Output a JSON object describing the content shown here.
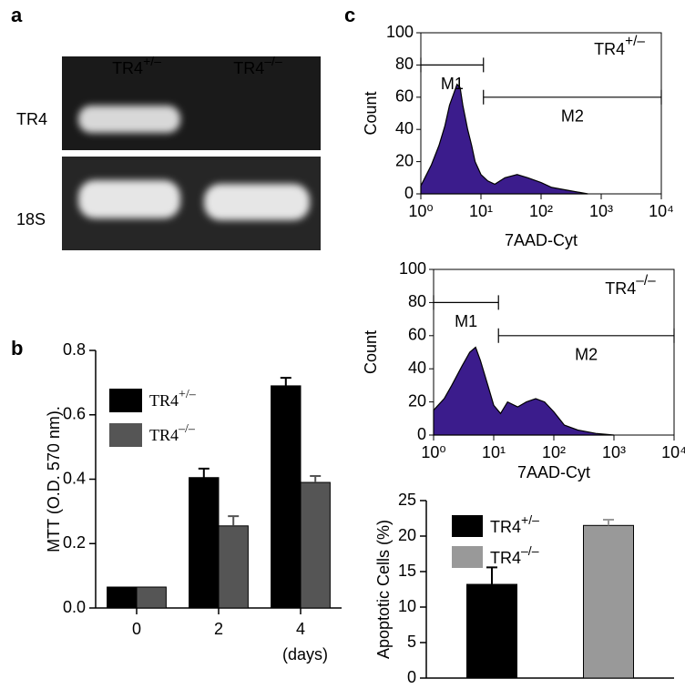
{
  "labels": {
    "a": "a",
    "b": "b",
    "c": "c"
  },
  "gel": {
    "columns": [
      "TR4+/–",
      "TR4–/–"
    ],
    "rows": [
      "TR4",
      "18S"
    ]
  },
  "chart_data": [
    {
      "type": "bar",
      "ylabel": "MTT (O.D. 570 nm).",
      "categories": [
        "0",
        "2",
        "4"
      ],
      "annotation": "(days)",
      "series": [
        {
          "name": "TR4+/–",
          "color": "#000000",
          "values": [
            0.065,
            0.405,
            0.69
          ],
          "errors": [
            0,
            0.028,
            0.025
          ]
        },
        {
          "name": "TR4–/–",
          "color": "#555555",
          "values": [
            0.065,
            0.255,
            0.39
          ],
          "errors": [
            0,
            0.03,
            0.02
          ]
        }
      ],
      "ylim": [
        0,
        0.8
      ],
      "yticks": [
        {
          "value": 0,
          "label": "0.0"
        },
        0.2,
        0.4,
        0.6,
        0.8
      ]
    },
    {
      "type": "area",
      "label": "TR4+/–",
      "xlabel": "7AAD-Cyt",
      "ylabel": "Count",
      "color": "#3b1c8c",
      "xlog": true,
      "x": [
        1,
        1.5,
        2,
        2.5,
        3,
        3.5,
        4,
        4.5,
        5,
        6,
        7,
        8,
        10,
        13,
        17,
        25,
        40,
        60,
        100,
        150,
        300,
        600
      ],
      "values": [
        5,
        18,
        30,
        42,
        55,
        62,
        68,
        66,
        55,
        40,
        30,
        20,
        12,
        8,
        6,
        10,
        12,
        10,
        7,
        4,
        2,
        0
      ],
      "gates": [
        {
          "label": "M1",
          "range": [
            1,
            11
          ],
          "y": 80
        },
        {
          "label": "M2",
          "range": [
            11,
            10000
          ],
          "y": 60
        }
      ],
      "xlim": [
        1,
        10000
      ],
      "ylim": [
        0,
        100
      ],
      "xticks": [
        {
          "value": 1,
          "label": "10⁰"
        },
        {
          "value": 10,
          "label": "10¹"
        },
        {
          "value": 100,
          "label": "10²"
        },
        {
          "value": 1000,
          "label": "10³"
        },
        {
          "value": 10000,
          "label": "10⁴"
        }
      ],
      "yticks": [
        0,
        20,
        40,
        60,
        80,
        100
      ]
    },
    {
      "type": "area",
      "label": "TR4–/–",
      "xlabel": "7AAD-Cyt",
      "ylabel": "Count",
      "color": "#3b1c8c",
      "xlog": true,
      "x": [
        1,
        1.5,
        2,
        3,
        4,
        5,
        6,
        8,
        10,
        13,
        17,
        25,
        35,
        50,
        70,
        100,
        150,
        250,
        500,
        1000
      ],
      "values": [
        15,
        22,
        30,
        42,
        50,
        53,
        45,
        30,
        18,
        13,
        20,
        17,
        20,
        22,
        20,
        14,
        6,
        3,
        1,
        0
      ],
      "gates": [
        {
          "label": "M1",
          "range": [
            1,
            12
          ],
          "y": 80
        },
        {
          "label": "M2",
          "range": [
            12,
            10000
          ],
          "y": 60
        }
      ],
      "xlim": [
        1,
        10000
      ],
      "ylim": [
        0,
        100
      ],
      "xticks": [
        {
          "value": 1,
          "label": "10⁰"
        },
        {
          "value": 10,
          "label": "10¹"
        },
        {
          "value": 100,
          "label": "10²"
        },
        {
          "value": 1000,
          "label": "10³"
        },
        {
          "value": 10000,
          "label": "10⁴"
        }
      ],
      "yticks": [
        0,
        20,
        40,
        60,
        80,
        100
      ]
    },
    {
      "type": "bar",
      "ylabel": "Apoptotic Cells (%)",
      "categories": [
        null
      ],
      "series": [
        {
          "name": "TR4+/–",
          "color": "#000000",
          "values": [
            13.2
          ],
          "errors": [
            2.4
          ]
        },
        {
          "name": "TR4–/–",
          "color": "#999999",
          "values": [
            21.5
          ],
          "errors": [
            0.8
          ]
        }
      ],
      "ylim": [
        0,
        25
      ],
      "yticks": [
        0,
        5,
        10,
        15,
        20,
        25
      ]
    }
  ]
}
